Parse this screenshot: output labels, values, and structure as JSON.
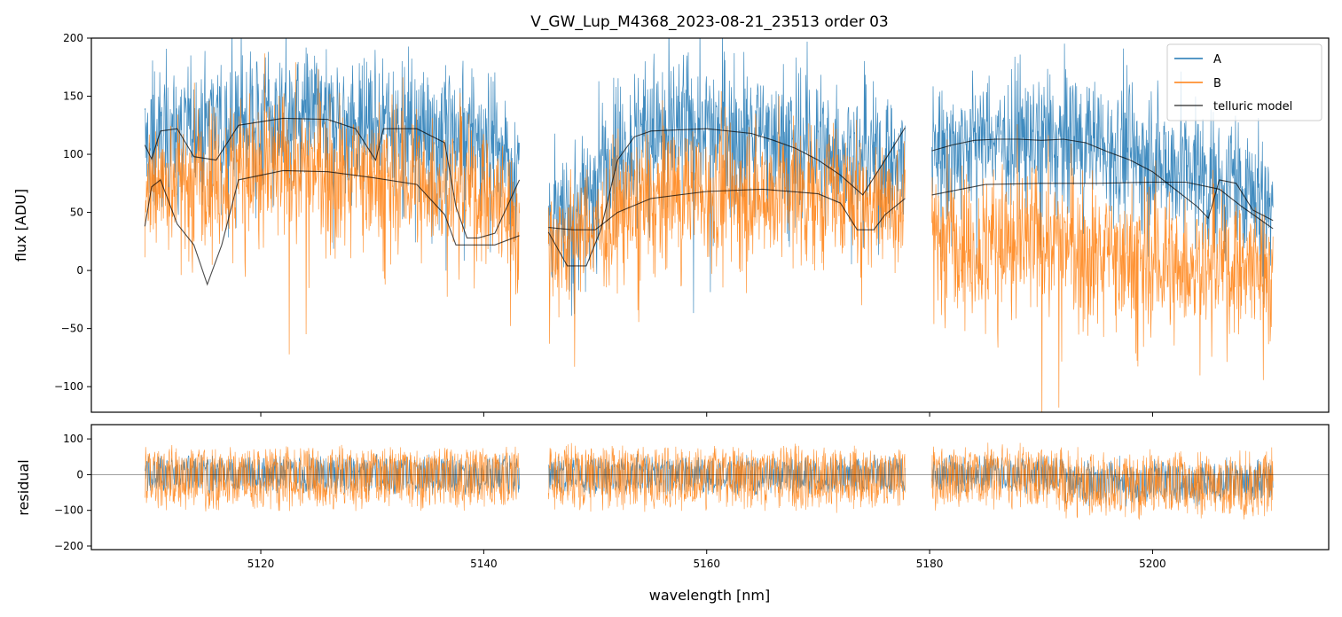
{
  "chart_data": {
    "type": "line",
    "title": "V_GW_Lup_M4368_2023-08-21_23513  order 03",
    "xlabel": "wavelength [nm]",
    "xlim": [
      5104.8,
      5215.8
    ],
    "xticks": [
      5120,
      5140,
      5160,
      5180,
      5200
    ],
    "segments": [
      [
        5109.6,
        5143.2
      ],
      [
        5145.8,
        5177.8
      ],
      [
        5180.2,
        5210.8
      ]
    ],
    "colors": {
      "A": "#1f77b4",
      "B": "#ff7f0e",
      "model": "#000000"
    },
    "top_panel": {
      "ylabel": "flux [ADU]",
      "ylim": [
        -122,
        200
      ],
      "yticks": [
        -100,
        -50,
        0,
        50,
        100,
        150,
        200
      ],
      "legend": [
        "A",
        "B",
        "telluric model"
      ],
      "legend_position": "top-right",
      "continuum_A": [
        {
          "segment": 0,
          "x": [
            5109.6,
            5112,
            5115,
            5118,
            5122,
            5126,
            5130,
            5134,
            5138,
            5141,
            5143.2
          ],
          "y": [
            105,
            120,
            128,
            131,
            131,
            129,
            126,
            123,
            118,
            108,
            90
          ]
        },
        {
          "segment": 1,
          "x": [
            5145.8,
            5148,
            5150,
            5152,
            5155,
            5160,
            5165,
            5170,
            5174,
            5177.8
          ],
          "y": [
            40,
            50,
            80,
            110,
            120,
            122,
            118,
            108,
            98,
            90
          ]
        },
        {
          "segment": 2,
          "x": [
            5180.2,
            5184,
            5188,
            5192,
            5196,
            5200,
            5204,
            5208,
            5210.8
          ],
          "y": [
            105,
            113,
            114,
            112,
            108,
            100,
            85,
            70,
            60
          ]
        }
      ],
      "continuum_B": [
        {
          "segment": 0,
          "x": [
            5109.6,
            5112,
            5115,
            5118,
            5122,
            5126,
            5130,
            5134,
            5138,
            5141,
            5143.2
          ],
          "y": [
            70,
            80,
            85,
            86,
            86,
            85,
            82,
            78,
            70,
            60,
            40
          ]
        },
        {
          "segment": 1,
          "x": [
            5145.8,
            5148,
            5150,
            5152,
            5155,
            5160,
            5165,
            5170,
            5174,
            5177.8
          ],
          "y": [
            25,
            28,
            35,
            50,
            62,
            68,
            70,
            68,
            62,
            58
          ]
        },
        {
          "segment": 2,
          "x": [
            5180.2,
            5184,
            5188,
            5192,
            5196,
            5200,
            5204,
            5208,
            5210.8
          ],
          "y": [
            40,
            25,
            25,
            22,
            15,
            8,
            5,
            2,
            0
          ]
        }
      ],
      "model_upper": {
        "x": [
          5109.6,
          5110.2,
          5111,
          5112.5,
          5114,
          5116,
          5118,
          5122,
          5126,
          5128.5,
          5130.3,
          5131,
          5134,
          5136.5,
          5137.5,
          5138.5,
          5139.5,
          5141,
          5143.2,
          null,
          5145.8,
          5147.5,
          5149.2,
          5150.5,
          5152,
          5153.5,
          5155,
          5160,
          5164,
          5166,
          5168,
          5170,
          5172,
          5174,
          5176,
          5177.8,
          null,
          5180.2,
          5182,
          5184,
          5186,
          5188,
          5190,
          5192,
          5194,
          5196,
          5198,
          5200,
          5202,
          5204,
          5205,
          5206,
          5207.5,
          5209,
          5210.8
        ],
        "y": [
          108,
          96,
          120,
          122,
          98,
          95,
          125,
          131,
          130,
          122,
          95,
          122,
          122,
          110,
          55,
          28,
          28,
          32,
          78,
          null,
          33,
          4,
          4,
          35,
          95,
          115,
          120,
          122,
          118,
          112,
          105,
          95,
          82,
          65,
          95,
          123,
          null,
          103,
          108,
          112,
          113,
          113,
          112,
          113,
          110,
          102,
          95,
          85,
          70,
          55,
          45,
          78,
          75,
          52,
          43
        ]
      },
      "model_lower": {
        "x": [
          5109.6,
          5110.2,
          5111,
          5112.5,
          5114,
          5115.2,
          5116.5,
          5118,
          5122,
          5126,
          5130,
          5134,
          5136.5,
          5137.5,
          5138.5,
          5139.5,
          5141,
          5143.2,
          null,
          5145.8,
          5148,
          5150,
          5152,
          5155,
          5160,
          5165,
          5170,
          5172,
          5173.5,
          5175,
          5176,
          5177.8,
          null,
          5180.2,
          5185,
          5190,
          5195,
          5200,
          5203,
          5206,
          5208,
          5210.8
        ],
        "y": [
          38,
          72,
          78,
          40,
          22,
          -12,
          22,
          78,
          86,
          85,
          80,
          74,
          48,
          22,
          22,
          22,
          22,
          30,
          null,
          37,
          35,
          35,
          50,
          62,
          68,
          70,
          66,
          58,
          35,
          35,
          48,
          62,
          null,
          65,
          74,
          75,
          75,
          76,
          76,
          70,
          55,
          36
        ]
      }
    },
    "bottom_panel": {
      "ylabel": "residual",
      "ylim": [
        -210,
        140
      ],
      "yticks": [
        -200,
        -100,
        0,
        100
      ],
      "zero_line": 0,
      "residual_mean": [
        0,
        0
      ],
      "residual_spread_A": [
        -60,
        60
      ],
      "residual_spread_B": [
        -110,
        90
      ]
    }
  }
}
